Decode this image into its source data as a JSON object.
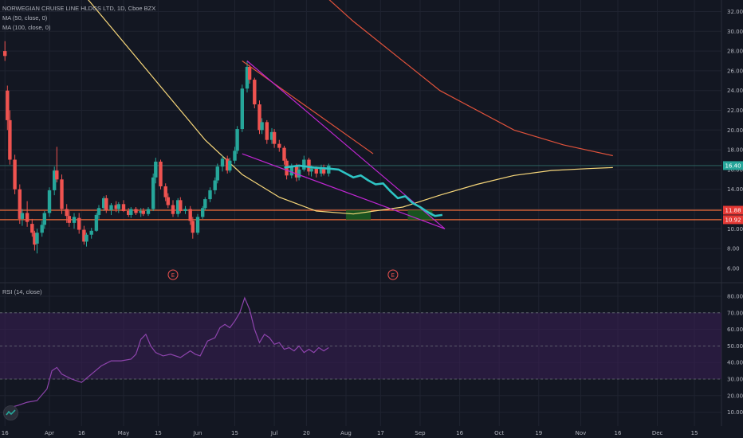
{
  "header": {
    "symbol_line": "NORWEGIAN CRUISE LINE HLDGS LTD, 1D, Cboe BZX",
    "ma50_label": "MA (50, close, 0)",
    "ma100_label": "MA (100, close, 0)"
  },
  "rsi_panel": {
    "label": "RSI (14, close)"
  },
  "colors": {
    "background": "#131722",
    "up": "#26a69a",
    "down": "#ef5350",
    "ma50": "#f7d77a",
    "ma100": "#e0523b",
    "wedge": "#c026d3",
    "projection": "#2ec4c4",
    "level_line": "#ef6c3a",
    "rsi_line": "#8e44ad",
    "rsi_band": "#3b1f55",
    "target_box": "#1b5e20",
    "price_label_current": "#26a69a",
    "price_label_levels": "#e53935"
  },
  "chart_data": [
    {
      "type": "candlestick",
      "title": "NORWEGIAN CRUISE LINE HLDGS LTD, 1D, Cboe BZX",
      "ylim": [
        5,
        33
      ],
      "y_ticks": [
        "32.00",
        "30.00",
        "28.00",
        "26.00",
        "24.00",
        "22.00",
        "20.00",
        "18.00",
        "16.00",
        "14.00",
        "12.00",
        "10.00",
        "8.00",
        "6.00"
      ],
      "x_ticks": [
        "16",
        "Apr",
        "16",
        "May",
        "15",
        "Jun",
        "15",
        "Jul",
        "20",
        "Aug",
        "17",
        "Sep",
        "16",
        "Oct",
        "19",
        "Nov",
        "16",
        "Dec",
        "15"
      ],
      "price_labels": [
        {
          "value": "16.40",
          "role": "current"
        },
        {
          "value": "11.88",
          "role": "level"
        },
        {
          "value": "10.92",
          "role": "level"
        }
      ],
      "horizontal_levels": [
        11.88,
        10.92,
        16.4
      ],
      "earnings_markers": [
        "E",
        "E"
      ],
      "series": [
        {
          "name": "MA (50, close, 0)",
          "kind": "line",
          "points": [
            [
              -1,
              40
            ],
            [
              30,
              34
            ],
            [
              60,
              25
            ],
            [
              80,
              19
            ],
            [
              95,
              15.5
            ],
            [
              110,
              13.2
            ],
            [
              125,
              11.8
            ],
            [
              140,
              11.5
            ],
            [
              160,
              12.2
            ],
            [
              175,
              13.4
            ],
            [
              190,
              14.5
            ],
            [
              205,
              15.4
            ],
            [
              220,
              15.9
            ],
            [
              235,
              16.1
            ],
            [
              245,
              16.2
            ]
          ]
        },
        {
          "name": "MA (100, close, 0)",
          "kind": "line",
          "points": [
            [
              100,
              40
            ],
            [
              140,
              31
            ],
            [
              175,
              24
            ],
            [
              205,
              20
            ],
            [
              225,
              18.5
            ],
            [
              245,
              17.4
            ]
          ]
        }
      ],
      "candles": [
        {
          "d": -1,
          "o": 28,
          "h": 29,
          "l": 27,
          "c": 27.5
        },
        {
          "d": 0,
          "o": 24,
          "h": 24.5,
          "l": 20,
          "c": 21
        },
        {
          "d": 1,
          "o": 21,
          "h": 22,
          "l": 16.5,
          "c": 17
        },
        {
          "d": 3,
          "o": 17,
          "h": 17.5,
          "l": 13.5,
          "c": 14
        },
        {
          "d": 5,
          "o": 14,
          "h": 14.5,
          "l": 10.5,
          "c": 11
        },
        {
          "d": 6,
          "o": 11,
          "h": 12,
          "l": 10.3,
          "c": 11.6
        },
        {
          "d": 8,
          "o": 11.6,
          "h": 12.8,
          "l": 10.2,
          "c": 10.7
        },
        {
          "d": 10,
          "o": 10.5,
          "h": 11,
          "l": 9.2,
          "c": 9.6
        },
        {
          "d": 11,
          "o": 9.6,
          "h": 9.8,
          "l": 7.8,
          "c": 8.4
        },
        {
          "d": 12,
          "o": 8.5,
          "h": 10,
          "l": 7.5,
          "c": 9.6
        },
        {
          "d": 14,
          "o": 9.6,
          "h": 10.8,
          "l": 9.2,
          "c": 10.4
        },
        {
          "d": 15,
          "o": 10.4,
          "h": 11.8,
          "l": 10,
          "c": 11.6
        },
        {
          "d": 17,
          "o": 11.6,
          "h": 14.2,
          "l": 11.2,
          "c": 13.9
        },
        {
          "d": 19,
          "o": 13.9,
          "h": 16.3,
          "l": 13.4,
          "c": 15.9
        },
        {
          "d": 20,
          "o": 15.9,
          "h": 18.3,
          "l": 14.7,
          "c": 15
        },
        {
          "d": 22,
          "o": 15,
          "h": 15.5,
          "l": 11.5,
          "c": 12
        },
        {
          "d": 24,
          "o": 12,
          "h": 12.5,
          "l": 10.6,
          "c": 11.3
        },
        {
          "d": 25,
          "o": 11.3,
          "h": 11.8,
          "l": 10.2,
          "c": 10.6
        },
        {
          "d": 27,
          "o": 10.6,
          "h": 11.6,
          "l": 10,
          "c": 11.2
        },
        {
          "d": 29,
          "o": 11.1,
          "h": 11.6,
          "l": 9.5,
          "c": 9.9
        },
        {
          "d": 31,
          "o": 9.9,
          "h": 10.3,
          "l": 8.4,
          "c": 8.7
        },
        {
          "d": 32,
          "o": 8.7,
          "h": 9.6,
          "l": 8.2,
          "c": 9.4
        },
        {
          "d": 34,
          "o": 9.4,
          "h": 10.1,
          "l": 9,
          "c": 9.8
        },
        {
          "d": 36,
          "o": 9.8,
          "h": 11.6,
          "l": 9.7,
          "c": 11.4
        },
        {
          "d": 37,
          "o": 11.4,
          "h": 12.4,
          "l": 11,
          "c": 12.1
        },
        {
          "d": 39,
          "o": 12.1,
          "h": 13.3,
          "l": 11.8,
          "c": 13.1
        },
        {
          "d": 40,
          "o": 13.1,
          "h": 13.4,
          "l": 11.6,
          "c": 11.9
        },
        {
          "d": 42,
          "o": 11.9,
          "h": 12.6,
          "l": 11.4,
          "c": 12.4
        },
        {
          "d": 44,
          "o": 12.4,
          "h": 12.8,
          "l": 11.7,
          "c": 12
        },
        {
          "d": 45,
          "o": 12,
          "h": 12.7,
          "l": 11.6,
          "c": 12.5
        },
        {
          "d": 47,
          "o": 12.5,
          "h": 12.9,
          "l": 11.7,
          "c": 11.8
        },
        {
          "d": 49,
          "o": 11.8,
          "h": 12.1,
          "l": 11.2,
          "c": 11.4
        },
        {
          "d": 50,
          "o": 11.4,
          "h": 12.2,
          "l": 11.1,
          "c": 12
        },
        {
          "d": 52,
          "o": 12,
          "h": 12.2,
          "l": 11.4,
          "c": 11.6
        },
        {
          "d": 54,
          "o": 11.6,
          "h": 12.1,
          "l": 11.2,
          "c": 11.8
        },
        {
          "d": 55,
          "o": 11.8,
          "h": 12.1,
          "l": 11.3,
          "c": 11.5
        },
        {
          "d": 57,
          "o": 11.5,
          "h": 12.2,
          "l": 11.3,
          "c": 12
        },
        {
          "d": 59,
          "o": 12,
          "h": 15.6,
          "l": 11.8,
          "c": 15.2
        },
        {
          "d": 60,
          "o": 15.2,
          "h": 17.2,
          "l": 14.6,
          "c": 16.8
        },
        {
          "d": 62,
          "o": 16.8,
          "h": 17,
          "l": 14,
          "c": 14.3
        },
        {
          "d": 64,
          "o": 14.3,
          "h": 14.6,
          "l": 12.8,
          "c": 13.2
        },
        {
          "d": 65,
          "o": 13.2,
          "h": 13.6,
          "l": 12.1,
          "c": 12.4
        },
        {
          "d": 67,
          "o": 12.4,
          "h": 12.9,
          "l": 11.2,
          "c": 11.5
        },
        {
          "d": 69,
          "o": 11.5,
          "h": 13.1,
          "l": 11.2,
          "c": 12.9
        },
        {
          "d": 70,
          "o": 12.9,
          "h": 13.2,
          "l": 11.6,
          "c": 11.8
        },
        {
          "d": 72,
          "o": 11.8,
          "h": 12.3,
          "l": 11.5,
          "c": 12
        },
        {
          "d": 74,
          "o": 12,
          "h": 12.3,
          "l": 10.4,
          "c": 10.8
        },
        {
          "d": 75,
          "o": 10.8,
          "h": 11.2,
          "l": 9,
          "c": 9.6
        },
        {
          "d": 77,
          "o": 9.6,
          "h": 11.5,
          "l": 9.4,
          "c": 11.2
        },
        {
          "d": 79,
          "o": 11.2,
          "h": 12.3,
          "l": 11,
          "c": 12.1
        },
        {
          "d": 80,
          "o": 12.1,
          "h": 13.2,
          "l": 11.9,
          "c": 13
        },
        {
          "d": 82,
          "o": 13,
          "h": 14.2,
          "l": 12.7,
          "c": 13.9
        },
        {
          "d": 84,
          "o": 13.9,
          "h": 15.2,
          "l": 13.5,
          "c": 14.9
        },
        {
          "d": 85,
          "o": 14.9,
          "h": 16.6,
          "l": 14.6,
          "c": 16.3
        },
        {
          "d": 87,
          "o": 16.3,
          "h": 17.4,
          "l": 15.8,
          "c": 17.1
        },
        {
          "d": 89,
          "o": 17.1,
          "h": 17.4,
          "l": 15.6,
          "c": 15.9
        },
        {
          "d": 90,
          "o": 15.9,
          "h": 17.2,
          "l": 15.7,
          "c": 16.9
        },
        {
          "d": 92,
          "o": 16.9,
          "h": 18.3,
          "l": 16.6,
          "c": 17.9
        },
        {
          "d": 93,
          "o": 17.9,
          "h": 20.4,
          "l": 17.6,
          "c": 20.1
        },
        {
          "d": 95,
          "o": 20.1,
          "h": 24.6,
          "l": 19.8,
          "c": 24.2
        },
        {
          "d": 97,
          "o": 24.2,
          "h": 27,
          "l": 23.8,
          "c": 26.4
        },
        {
          "d": 98,
          "o": 26.4,
          "h": 26.6,
          "l": 24.7,
          "c": 25.1
        },
        {
          "d": 100,
          "o": 25.1,
          "h": 25.3,
          "l": 22.2,
          "c": 22.6
        },
        {
          "d": 102,
          "o": 22.6,
          "h": 23,
          "l": 19.6,
          "c": 20
        },
        {
          "d": 103,
          "o": 20,
          "h": 21.2,
          "l": 19.6,
          "c": 20.8
        },
        {
          "d": 105,
          "o": 20.8,
          "h": 21,
          "l": 18.6,
          "c": 19
        },
        {
          "d": 107,
          "o": 19,
          "h": 20.2,
          "l": 18.6,
          "c": 19.8
        },
        {
          "d": 108,
          "o": 19.8,
          "h": 20.1,
          "l": 18.2,
          "c": 18.6
        },
        {
          "d": 110,
          "o": 18.6,
          "h": 19,
          "l": 17.8,
          "c": 18.2
        },
        {
          "d": 112,
          "o": 18.2,
          "h": 18.4,
          "l": 16.5,
          "c": 16.9
        },
        {
          "d": 113,
          "o": 16.9,
          "h": 17.1,
          "l": 15,
          "c": 15.4
        },
        {
          "d": 115,
          "o": 15.4,
          "h": 16.6,
          "l": 15.1,
          "c": 16.3
        },
        {
          "d": 117,
          "o": 16.3,
          "h": 16.6,
          "l": 14.8,
          "c": 15.2
        },
        {
          "d": 118,
          "o": 15.2,
          "h": 16.3,
          "l": 14.9,
          "c": 16
        },
        {
          "d": 120,
          "o": 16,
          "h": 17.4,
          "l": 15.8,
          "c": 17
        },
        {
          "d": 122,
          "o": 17,
          "h": 17.2,
          "l": 15.4,
          "c": 15.8
        },
        {
          "d": 123,
          "o": 15.8,
          "h": 16.4,
          "l": 15.3,
          "c": 16.1
        },
        {
          "d": 125,
          "o": 16.1,
          "h": 16.3,
          "l": 15.2,
          "c": 15.6
        },
        {
          "d": 127,
          "o": 15.6,
          "h": 16.5,
          "l": 15.3,
          "c": 16.2
        },
        {
          "d": 128,
          "o": 16.2,
          "h": 16.5,
          "l": 15.4,
          "c": 15.6
        },
        {
          "d": 130,
          "o": 15.6,
          "h": 16.6,
          "l": 15.3,
          "c": 16.4
        }
      ],
      "wedge": [
        {
          "from": [
            95,
            27
          ],
          "to": [
            148,
            17.6
          ]
        },
        {
          "from": [
            95,
            17.6
          ],
          "to": [
            177,
            10
          ]
        },
        {
          "from": [
            97,
            27
          ],
          "to": [
            177,
            10
          ]
        }
      ],
      "projection_path": [
        [
          112,
          16.2
        ],
        [
          118,
          16.4
        ],
        [
          124,
          16.2
        ],
        [
          130,
          16.1
        ],
        [
          134,
          16
        ],
        [
          137,
          15.6
        ],
        [
          140,
          15.2
        ],
        [
          143,
          15.4
        ],
        [
          146,
          14.9
        ],
        [
          149,
          14.5
        ],
        [
          152,
          14.6
        ],
        [
          155,
          13.8
        ],
        [
          158,
          13.1
        ],
        [
          161,
          13.3
        ],
        [
          164,
          12.6
        ],
        [
          167,
          12.2
        ],
        [
          170,
          11.7
        ],
        [
          173,
          11.3
        ],
        [
          176,
          11.4
        ]
      ],
      "target_boxes": [
        {
          "x0": 137,
          "x1": 147,
          "y0": 10.92,
          "y1": 11.88
        },
        {
          "x0": 162,
          "x1": 172,
          "y0": 10.92,
          "y1": 11.88
        }
      ]
    },
    {
      "type": "line",
      "title": "RSI (14, close)",
      "ylim": [
        5,
        85
      ],
      "y_ticks": [
        "80.00",
        "70.00",
        "60.00",
        "50.00",
        "40.00",
        "30.00",
        "20.00",
        "10.00"
      ],
      "band": [
        30,
        70
      ],
      "midline": 50,
      "series": [
        {
          "name": "RSI (14, close)",
          "points": [
            [
              -1,
              12
            ],
            [
              4,
              14
            ],
            [
              8,
              16
            ],
            [
              12,
              17
            ],
            [
              16,
              24
            ],
            [
              18,
              35
            ],
            [
              20,
              37
            ],
            [
              22,
              33
            ],
            [
              26,
              30
            ],
            [
              30,
              28
            ],
            [
              34,
              33
            ],
            [
              38,
              38
            ],
            [
              42,
              41
            ],
            [
              46,
              41
            ],
            [
              50,
              42
            ],
            [
              52,
              45
            ],
            [
              54,
              54
            ],
            [
              56,
              57
            ],
            [
              58,
              50
            ],
            [
              60,
              46
            ],
            [
              63,
              44
            ],
            [
              66,
              45
            ],
            [
              70,
              43
            ],
            [
              74,
              47
            ],
            [
              76,
              45
            ],
            [
              78,
              44
            ],
            [
              81,
              53
            ],
            [
              84,
              55
            ],
            [
              86,
              61
            ],
            [
              88,
              63
            ],
            [
              90,
              61
            ],
            [
              92,
              65
            ],
            [
              94,
              70
            ],
            [
              96,
              79
            ],
            [
              98,
              72
            ],
            [
              100,
              60
            ],
            [
              102,
              52
            ],
            [
              104,
              57
            ],
            [
              106,
              55
            ],
            [
              108,
              51
            ],
            [
              110,
              52
            ],
            [
              112,
              48
            ],
            [
              114,
              49
            ],
            [
              116,
              47
            ],
            [
              118,
              50
            ],
            [
              120,
              46
            ],
            [
              122,
              48
            ],
            [
              124,
              46
            ],
            [
              126,
              49
            ],
            [
              128,
              47
            ],
            [
              130,
              49
            ]
          ]
        }
      ]
    }
  ],
  "rsi_y_label_mid": "50.00"
}
